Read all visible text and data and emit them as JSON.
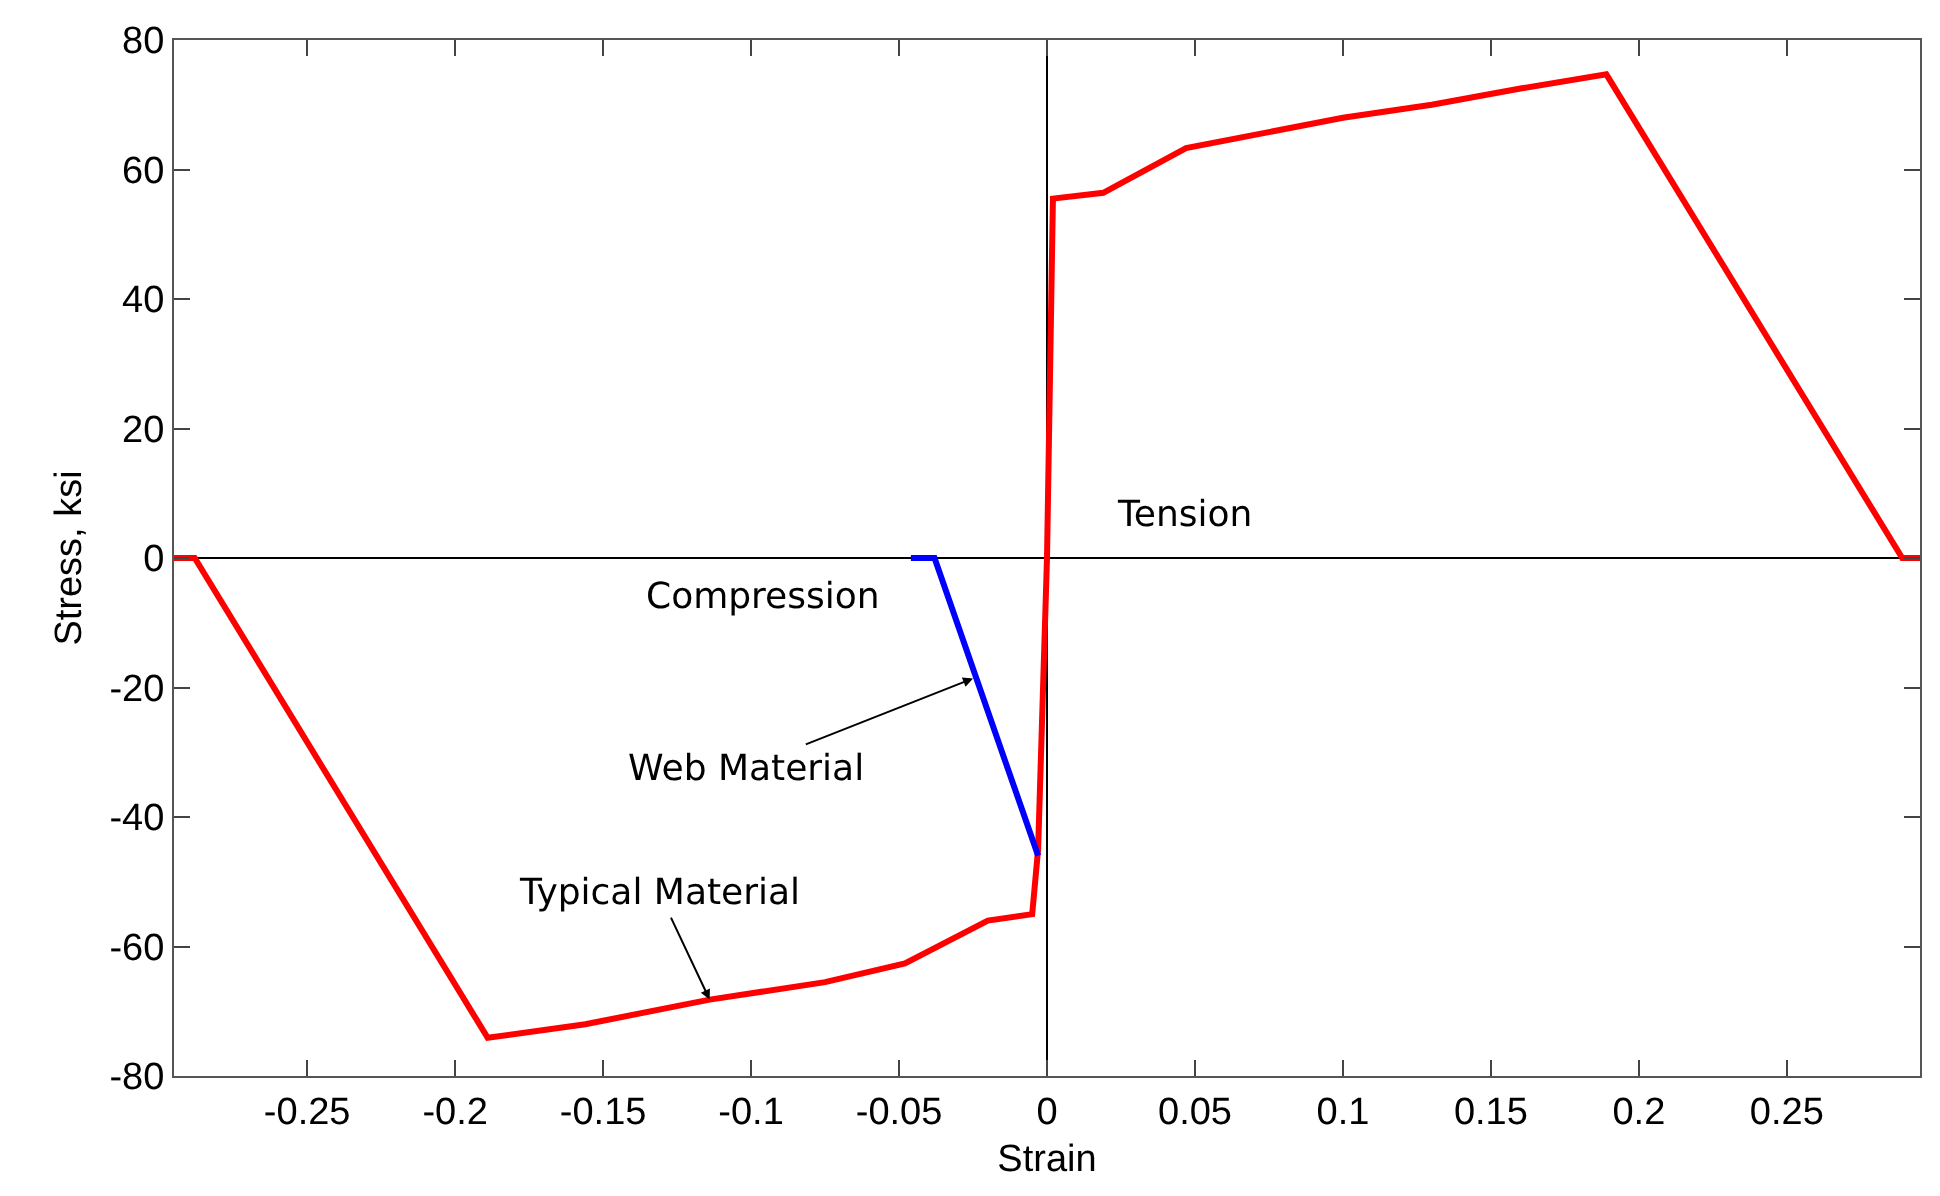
{
  "chart_data": {
    "type": "line",
    "xlabel": "Strain",
    "ylabel": "Stress, ksi",
    "xlim": [
      -0.295,
      0.295
    ],
    "xticks": [
      -0.25,
      -0.2,
      -0.15,
      -0.1,
      -0.05,
      0,
      0.05,
      0.1,
      0.15,
      0.2,
      0.25
    ],
    "ylim": [
      -80,
      80
    ],
    "yticks": [
      -80,
      -60,
      -40,
      -20,
      0,
      20,
      40,
      60,
      80
    ],
    "marker": "none",
    "line_style": "solid",
    "series": [
      {
        "color": "#ff0000",
        "x": [
          -0.295,
          -0.288,
          -0.189,
          -0.156,
          -0.114,
          -0.075,
          -0.048,
          -0.02,
          -0.005,
          -0.003,
          0,
          0.002,
          0.019,
          0.047,
          0.1,
          0.13,
          0.16,
          0.189,
          0.289,
          0.295
        ],
        "values": [
          0,
          0,
          -74.1,
          -72,
          -68.2,
          -65.5,
          -62.6,
          -56,
          -55,
          -45,
          0,
          55.5,
          56.4,
          63.3,
          68,
          70,
          72.5,
          74.7,
          0,
          0
        ]
      },
      {
        "color": "#0000ff",
        "x": [
          -0.046,
          -0.038,
          -0.003
        ],
        "values": [
          0,
          0,
          -46
        ]
      }
    ],
    "annotations": [
      "Tension",
      "Compression",
      {
        "text": "Web Material",
        "x": -0.025,
        "y": -18.6
      },
      {
        "text": "Typical Material",
        "x": -0.114,
        "y": -68.2
      }
    ]
  }
}
